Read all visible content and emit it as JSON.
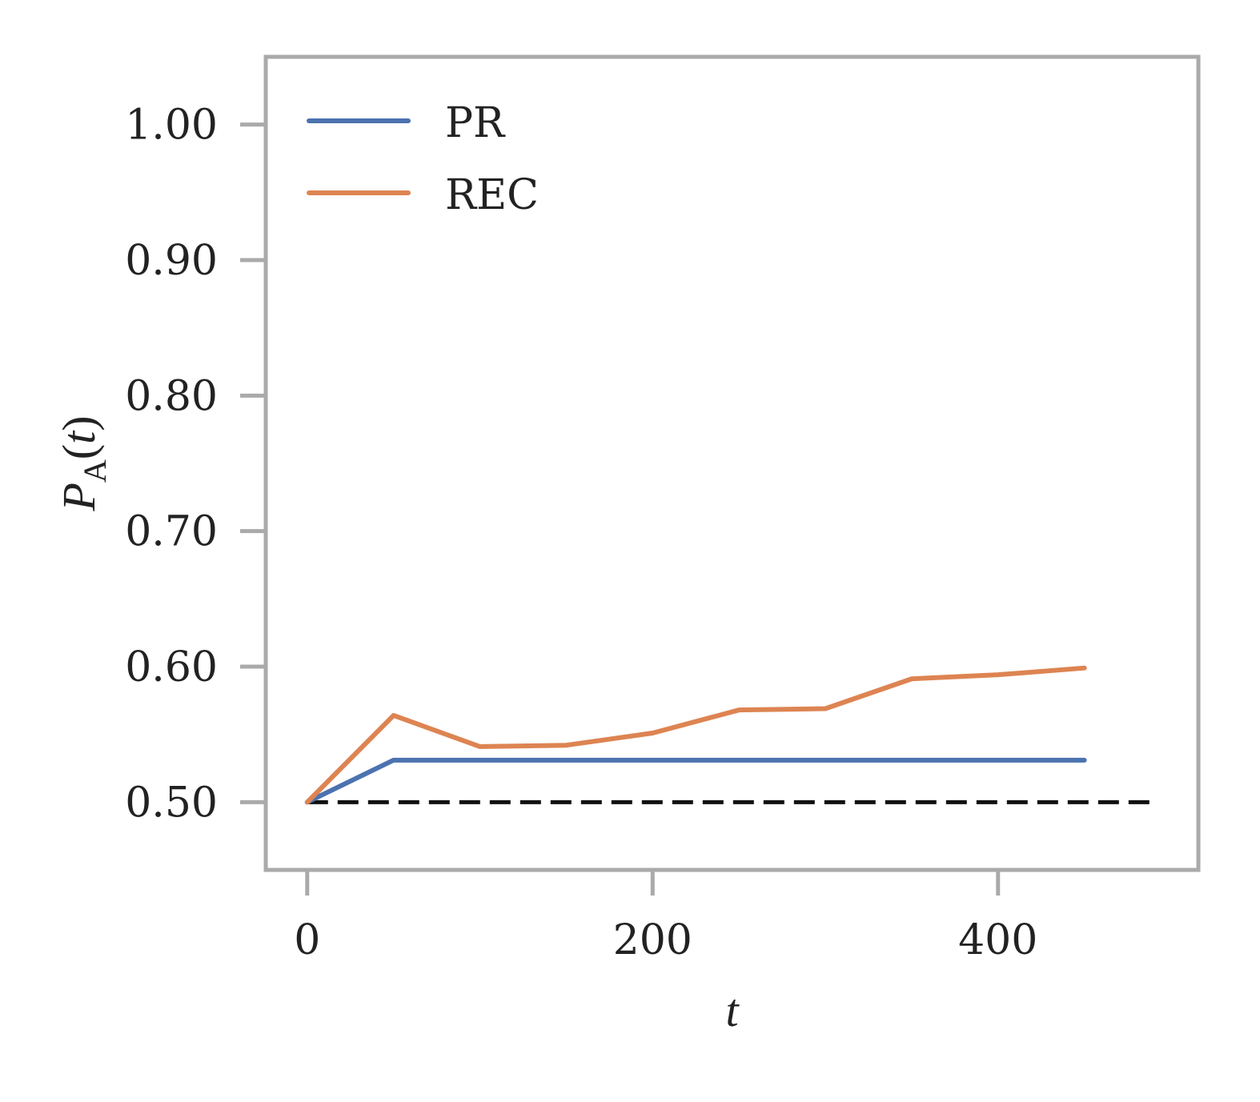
{
  "chart_data": {
    "type": "line",
    "title": "",
    "xlabel": "t",
    "ylabel": {
      "main": "P",
      "sub": "A",
      "open": "(",
      "var": "t",
      "close": ")"
    },
    "xlim": [
      -12,
      258
    ],
    "ylim": [
      0.45,
      1.05
    ],
    "xticks": [
      0,
      100,
      200
    ],
    "xtick_labels": [
      "0",
      "200",
      "400"
    ],
    "yticks": [
      0.5,
      0.6,
      0.7,
      0.8,
      0.9,
      1.0
    ],
    "ytick_labels": [
      "0.50",
      "0.60",
      "0.70",
      "0.80",
      "0.90",
      "1.00"
    ],
    "grid": false,
    "legend_position": "top-left",
    "x": [
      0,
      25,
      50,
      75,
      100,
      125,
      150,
      175,
      200,
      225
    ],
    "series": [
      {
        "name": "PR",
        "color": "#4c72b0",
        "values": [
          0.5,
          0.531,
          0.531,
          0.531,
          0.531,
          0.531,
          0.531,
          0.531,
          0.531,
          0.531
        ]
      },
      {
        "name": "REC",
        "color": "#dd8452",
        "values": [
          0.5,
          0.564,
          0.541,
          0.542,
          0.551,
          0.568,
          0.569,
          0.591,
          0.594,
          0.599
        ]
      }
    ],
    "reference_line": {
      "y": 0.5,
      "x_range": [
        0,
        245
      ],
      "style": "dashed",
      "color": "#111111"
    },
    "frame_color": "#aaaaaa"
  }
}
